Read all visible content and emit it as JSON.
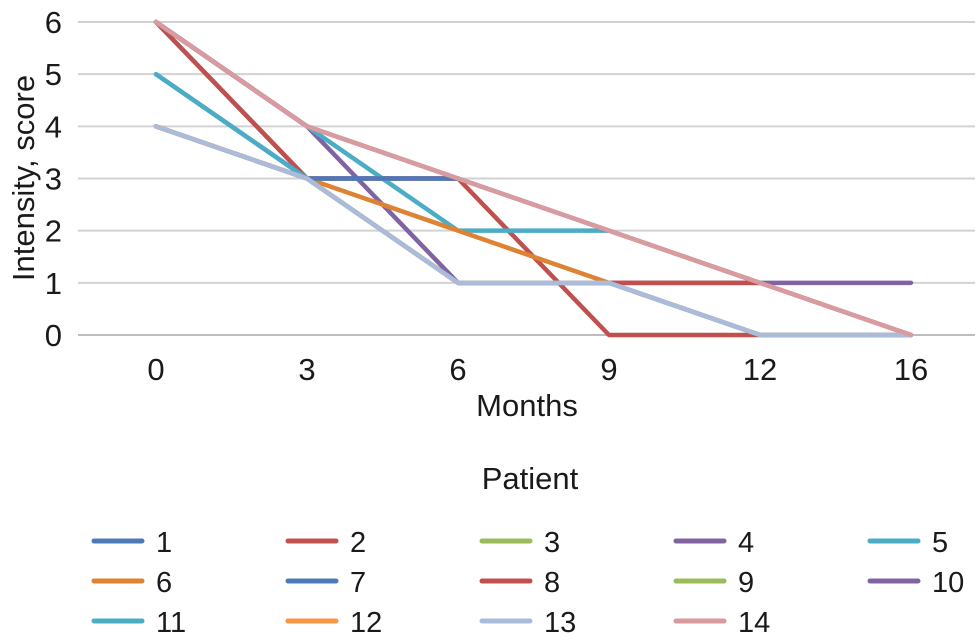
{
  "chart_data": {
    "type": "line",
    "title": "",
    "xlabel": "Months",
    "ylabel": "Intensity, score",
    "legend_title": "Patient",
    "legend_position": "bottom",
    "grid": "horizontal-only",
    "categories": [
      "0",
      "3",
      "6",
      "9",
      "12",
      "16"
    ],
    "y_ticks": [
      "0",
      "1",
      "2",
      "3",
      "4",
      "5",
      "6"
    ],
    "ylim": [
      0,
      6
    ],
    "colors": {
      "grid": "#d2d2d2",
      "zero_line": "#bdbdbd",
      "text": "#1a1a1a"
    },
    "series": [
      {
        "name": "1",
        "color": "#4E79B8",
        "values": [
          6,
          3,
          3
        ]
      },
      {
        "name": "2",
        "color": "#C0504D",
        "values": [
          6,
          3,
          3,
          0,
          0
        ]
      },
      {
        "name": "3",
        "color": "#9BBB59",
        "values": [
          4,
          3,
          1,
          1,
          0,
          0
        ]
      },
      {
        "name": "4",
        "color": "#8064A2",
        "values": [
          6,
          4,
          1,
          1,
          1,
          1
        ]
      },
      {
        "name": "5",
        "color": "#4BACC6",
        "values": [
          6,
          4,
          2,
          2
        ]
      },
      {
        "name": "6",
        "color": "#DE8234",
        "values": [
          4,
          3,
          2,
          1
        ]
      },
      {
        "name": "7",
        "color": "#4E79B8",
        "values": [
          5,
          3,
          3
        ]
      },
      {
        "name": "8",
        "color": "#C0504D",
        "values": [
          4,
          3,
          1,
          1,
          1
        ]
      },
      {
        "name": "9",
        "color": "#9BBB59",
        "values": [
          4,
          3,
          1,
          1,
          0,
          0
        ]
      },
      {
        "name": "10",
        "color": "#8064A2",
        "values": [
          6,
          4,
          3,
          2,
          1,
          0
        ]
      },
      {
        "name": "11",
        "color": "#4BACC6",
        "values": [
          5,
          3,
          1,
          1,
          0,
          0
        ]
      },
      {
        "name": "12",
        "color": "#F79646",
        "values": [
          4,
          3,
          1,
          1,
          0,
          0
        ]
      },
      {
        "name": "13",
        "color": "#AABCDC",
        "values": [
          4,
          3,
          1,
          1,
          0,
          0
        ]
      },
      {
        "name": "14",
        "color": "#D99B9E",
        "values": [
          6,
          4,
          3,
          2,
          1,
          0
        ]
      }
    ]
  }
}
